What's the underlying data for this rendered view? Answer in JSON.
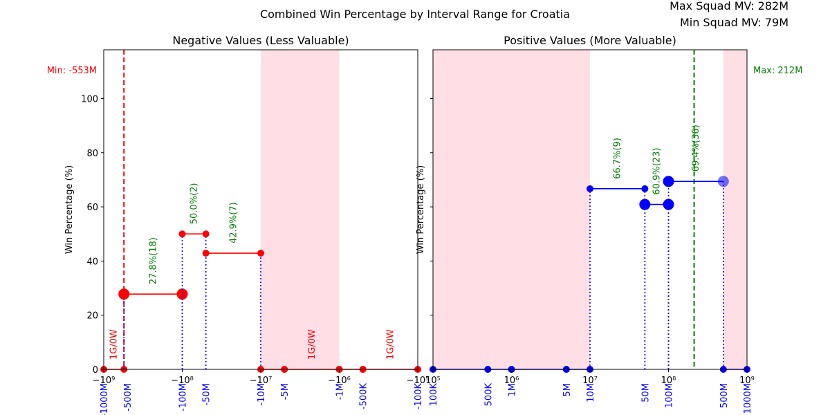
{
  "figure": {
    "title": "Combined Win Percentage by Interval Range for Croatia",
    "max_note": "Max Squad MV: 282M",
    "min_note": "Min Squad MV: 79M"
  },
  "colors": {
    "neg_series": "#ff0000",
    "pos_series": "#0000ff",
    "shade": "#ffc0cb",
    "label_green": "#008000",
    "label_red": "#ff0000",
    "tick_blue": "#0000ff",
    "min_line": "#ff0000",
    "max_line": "#008000"
  },
  "chart_data": [
    {
      "type": "line",
      "title": "Negative Values (Less Valuable)",
      "ylabel": "Win Percentage (%)",
      "xscale": "symlog",
      "xlim": [
        -1000000000,
        -100000
      ],
      "ylim": [
        0,
        118
      ],
      "yticks": [
        0,
        20,
        40,
        60,
        80,
        100
      ],
      "xticks": [
        {
          "value": -1000000000,
          "label": "−10⁹"
        },
        {
          "value": -100000000,
          "label": "−10⁸"
        },
        {
          "value": -10000000,
          "label": "−10⁷"
        },
        {
          "value": -1000000,
          "label": "−10⁶"
        },
        {
          "value": -100000,
          "label": "−10⁵"
        }
      ],
      "range_ticks": [
        {
          "value": -1000000000,
          "label": "-1000M"
        },
        {
          "value": -500000000,
          "label": "-500M"
        },
        {
          "value": -100000000,
          "label": "-100M"
        },
        {
          "value": -50000000,
          "label": "-50M"
        },
        {
          "value": -10000000,
          "label": "-10M"
        },
        {
          "value": -5000000,
          "label": "-5M"
        },
        {
          "value": -1000000,
          "label": "-1M"
        },
        {
          "value": -500000,
          "label": "-500K"
        },
        {
          "value": -100000,
          "label": "-100K"
        }
      ],
      "shaded_ranges": [
        {
          "from": -10000000,
          "to": -5000000
        },
        {
          "from": -5000000,
          "to": -1000000
        }
      ],
      "ref_line": {
        "x": -553000000,
        "label": "Min: -553M"
      },
      "segments": [
        {
          "from": -1000000000,
          "to": -553000000,
          "y": 0,
          "marker": "small",
          "label": "1G/0W",
          "label_color": "red"
        },
        {
          "from": -553000000,
          "to": -100000000,
          "y": 27.8,
          "marker": "large",
          "label": "27.8%(18)",
          "label_color": "green"
        },
        {
          "from": -100000000,
          "to": -50000000,
          "y": 50.0,
          "marker": "small",
          "label": "50.0%(2)",
          "label_color": "green"
        },
        {
          "from": -50000000,
          "to": -10000000,
          "y": 42.9,
          "marker": "small",
          "label": "42.9%(7)",
          "label_color": "green"
        },
        {
          "from": -10000000,
          "to": -5000000,
          "y": 0,
          "marker": "small",
          "label": "",
          "label_color": "red"
        },
        {
          "from": -5000000,
          "to": -1000000,
          "y": 0,
          "marker": "small",
          "label": "1G/0W",
          "label_color": "red"
        },
        {
          "from": -1000000,
          "to": -500000,
          "y": 0,
          "marker": "small",
          "label": "",
          "label_color": "red"
        },
        {
          "from": -500000,
          "to": -100000,
          "y": 0,
          "marker": "small",
          "label": "1G/0W",
          "label_color": "red"
        }
      ]
    },
    {
      "type": "line",
      "title": "Positive Values (More Valuable)",
      "ylabel": "Win Percentage (%)",
      "xscale": "log",
      "xlim": [
        100000,
        1000000000
      ],
      "ylim": [
        0,
        118
      ],
      "yticks": [
        0,
        20,
        40,
        60,
        80,
        100
      ],
      "xticks": [
        {
          "value": 100000,
          "label": "10⁵"
        },
        {
          "value": 1000000,
          "label": "10⁶"
        },
        {
          "value": 10000000,
          "label": "10⁷"
        },
        {
          "value": 100000000,
          "label": "10⁸"
        },
        {
          "value": 1000000000,
          "label": "10⁹"
        }
      ],
      "range_ticks": [
        {
          "value": 100000,
          "label": "100K"
        },
        {
          "value": 500000,
          "label": "500K"
        },
        {
          "value": 1000000,
          "label": "1M"
        },
        {
          "value": 5000000,
          "label": "5M"
        },
        {
          "value": 10000000,
          "label": "10M"
        },
        {
          "value": 50000000,
          "label": "50M"
        },
        {
          "value": 100000000,
          "label": "100M"
        },
        {
          "value": 500000000,
          "label": "500M"
        },
        {
          "value": 1000000000,
          "label": "1000M"
        }
      ],
      "shaded_ranges": [
        {
          "from": 100000,
          "to": 500000
        },
        {
          "from": 500000,
          "to": 1000000
        },
        {
          "from": 1000000,
          "to": 5000000
        },
        {
          "from": 5000000,
          "to": 10000000
        },
        {
          "from": 500000000,
          "to": 1000000000
        }
      ],
      "ref_line": {
        "x": 212000000,
        "label": "Max: 212M"
      },
      "segments": [
        {
          "from": 100000,
          "to": 500000,
          "y": 0,
          "marker": "small",
          "label": "",
          "label_color": "green"
        },
        {
          "from": 500000,
          "to": 1000000,
          "y": 0,
          "marker": "small",
          "label": "",
          "label_color": "green"
        },
        {
          "from": 1000000,
          "to": 5000000,
          "y": 0,
          "marker": "small",
          "label": "",
          "label_color": "green"
        },
        {
          "from": 5000000,
          "to": 10000000,
          "y": 0,
          "marker": "small",
          "label": "",
          "label_color": "green"
        },
        {
          "from": 10000000,
          "to": 50000000,
          "y": 66.7,
          "marker": "small",
          "label": "66.7%(9)",
          "label_color": "green"
        },
        {
          "from": 50000000,
          "to": 100000000,
          "y": 60.9,
          "marker": "large",
          "label": "60.9%(23)",
          "label_color": "green"
        },
        {
          "from": 100000000,
          "to": 500000000,
          "y": 69.4,
          "marker": "large",
          "label": "69.4%(36)",
          "label_color": "green"
        },
        {
          "from": 500000000,
          "to": 1000000000,
          "y": 0,
          "marker": "small",
          "label": "",
          "label_color": "green"
        }
      ]
    }
  ]
}
